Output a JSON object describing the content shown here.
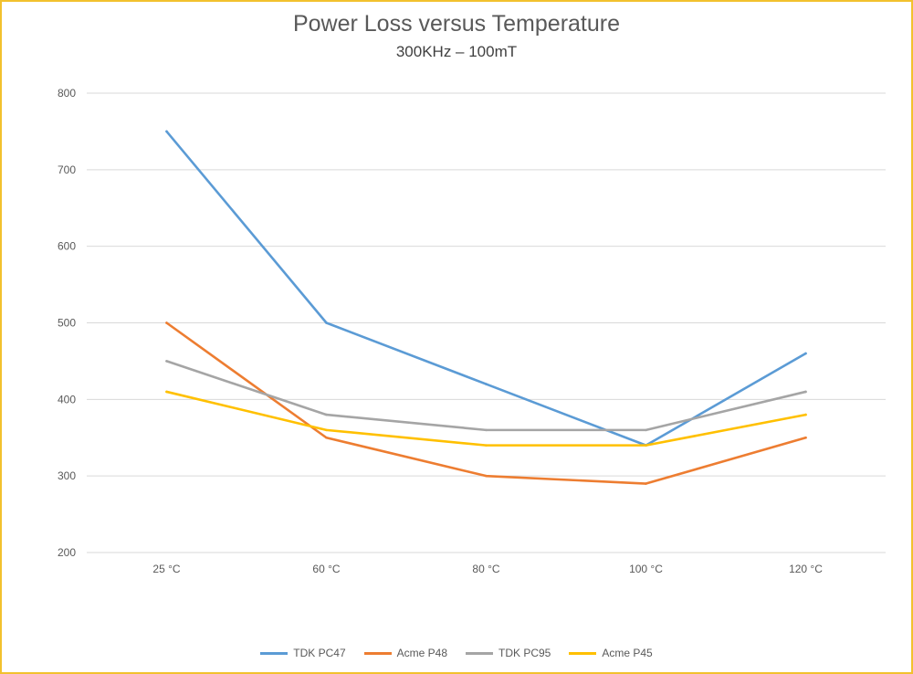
{
  "chart_data": {
    "type": "line",
    "title": "Power Loss versus Temperature",
    "subtitle": "300KHz – 100mT",
    "xlabel": "",
    "ylabel": "",
    "categories": [
      "25 °C",
      "60 °C",
      "80 °C",
      "100 °C",
      "120 °C"
    ],
    "ylim": [
      200,
      800
    ],
    "yticks": [
      200,
      300,
      400,
      500,
      600,
      700,
      800
    ],
    "grid": true,
    "legend_position": "bottom",
    "series": [
      {
        "name": "TDK PC47",
        "color": "#5b9bd5",
        "values": [
          750,
          500,
          420,
          340,
          460
        ]
      },
      {
        "name": "Acme P48",
        "color": "#ed7d31",
        "values": [
          500,
          350,
          300,
          290,
          350
        ]
      },
      {
        "name": "TDK PC95",
        "color": "#a5a5a5",
        "values": [
          450,
          380,
          360,
          360,
          410
        ]
      },
      {
        "name": "Acme P45",
        "color": "#ffc000",
        "values": [
          410,
          360,
          340,
          340,
          380
        ]
      }
    ]
  }
}
